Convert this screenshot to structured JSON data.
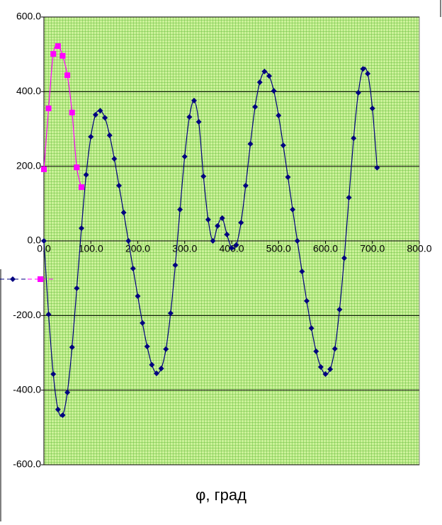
{
  "chart_data": {
    "type": "line",
    "x_label": "φ, град",
    "xlim": [
      0,
      800
    ],
    "ylim": [
      -600,
      600
    ],
    "xticks": [
      {
        "value": 0,
        "label": "0.0"
      },
      {
        "value": 100,
        "label": "100.0"
      },
      {
        "value": 200,
        "label": "200.0"
      },
      {
        "value": 300,
        "label": "300.0"
      },
      {
        "value": 400,
        "label": "400.0"
      },
      {
        "value": 500,
        "label": "500.0"
      },
      {
        "value": 600,
        "label": "600.0"
      },
      {
        "value": 700,
        "label": "700.0"
      },
      {
        "value": 800,
        "label": "800.0"
      }
    ],
    "yticks": [
      {
        "value": -600,
        "label": "-600.0"
      },
      {
        "value": -400,
        "label": "-400.0"
      },
      {
        "value": -200,
        "label": "-200.0"
      },
      {
        "value": 0,
        "label": "0.0"
      },
      {
        "value": 200,
        "label": "200.0"
      },
      {
        "value": 400,
        "label": "400.0"
      },
      {
        "value": 600,
        "label": "600.0"
      }
    ],
    "grid": true,
    "series": [
      {
        "color": "#000080",
        "marker": "diamond",
        "x": [
          0,
          10,
          20,
          30,
          40,
          50,
          60,
          70,
          80,
          90,
          100,
          110,
          120,
          130,
          140,
          150,
          160,
          170,
          180,
          190,
          200,
          210,
          220,
          230,
          240,
          250,
          260,
          270,
          280,
          290,
          300,
          310,
          320,
          330,
          340,
          350,
          360,
          370,
          380,
          390,
          400,
          410,
          420,
          430,
          440,
          450,
          460,
          470,
          480,
          490,
          500,
          510,
          520,
          530,
          540,
          550,
          560,
          570,
          580,
          590,
          600,
          610,
          620,
          630,
          640,
          650,
          660,
          670,
          680,
          690,
          700,
          710
        ],
        "values": [
          0,
          -197,
          -357,
          -452,
          -467,
          -406,
          -285,
          -127,
          34,
          177,
          279,
          338,
          349,
          330,
          283,
          220,
          148,
          76,
          0,
          -74,
          -148,
          -220,
          -283,
          -332,
          -355,
          -342,
          -290,
          -194,
          -65,
          84,
          226,
          332,
          376,
          319,
          173,
          57,
          0,
          40,
          61,
          17,
          -19,
          -11,
          49,
          148,
          260,
          359,
          425,
          454,
          442,
          402,
          336,
          256,
          171,
          84,
          0,
          -82,
          -161,
          -234,
          -296,
          -338,
          -357,
          -344,
          -289,
          -184,
          -46,
          116,
          275,
          397,
          461,
          448,
          355,
          196
        ]
      },
      {
        "color": "#ff00ff",
        "marker": "square",
        "x": [
          0,
          10,
          20,
          30,
          40,
          50,
          60,
          70,
          80
        ],
        "values": [
          192,
          355,
          501,
          522,
          496,
          444,
          344,
          197,
          144
        ]
      }
    ]
  }
}
